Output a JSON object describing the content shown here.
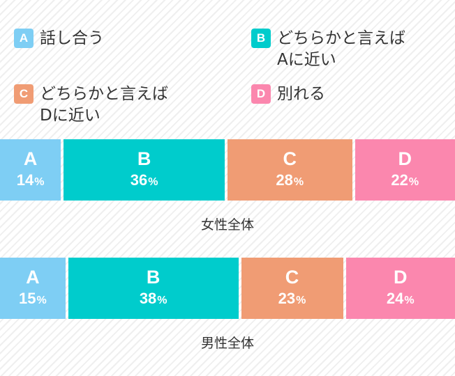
{
  "legend": [
    {
      "key": "A",
      "label": "話し合う",
      "color": "#7ecef4"
    },
    {
      "key": "B",
      "label": "どちらかと言えば\nAに近い",
      "color": "#00cccc"
    },
    {
      "key": "C",
      "label": "どちらかと言えば\nDに近い",
      "color": "#f09c74"
    },
    {
      "key": "D",
      "label": "別れる",
      "color": "#fb87ae"
    }
  ],
  "chart_data": [
    {
      "type": "bar",
      "stacked": true,
      "orientation": "horizontal",
      "title": "女性全体",
      "unit": "%",
      "categories": [
        "A",
        "B",
        "C",
        "D"
      ],
      "values": [
        14,
        36,
        28,
        22
      ]
    },
    {
      "type": "bar",
      "stacked": true,
      "orientation": "horizontal",
      "title": "男性全体",
      "unit": "%",
      "categories": [
        "A",
        "B",
        "C",
        "D"
      ],
      "values": [
        15,
        38,
        23,
        24
      ]
    }
  ]
}
